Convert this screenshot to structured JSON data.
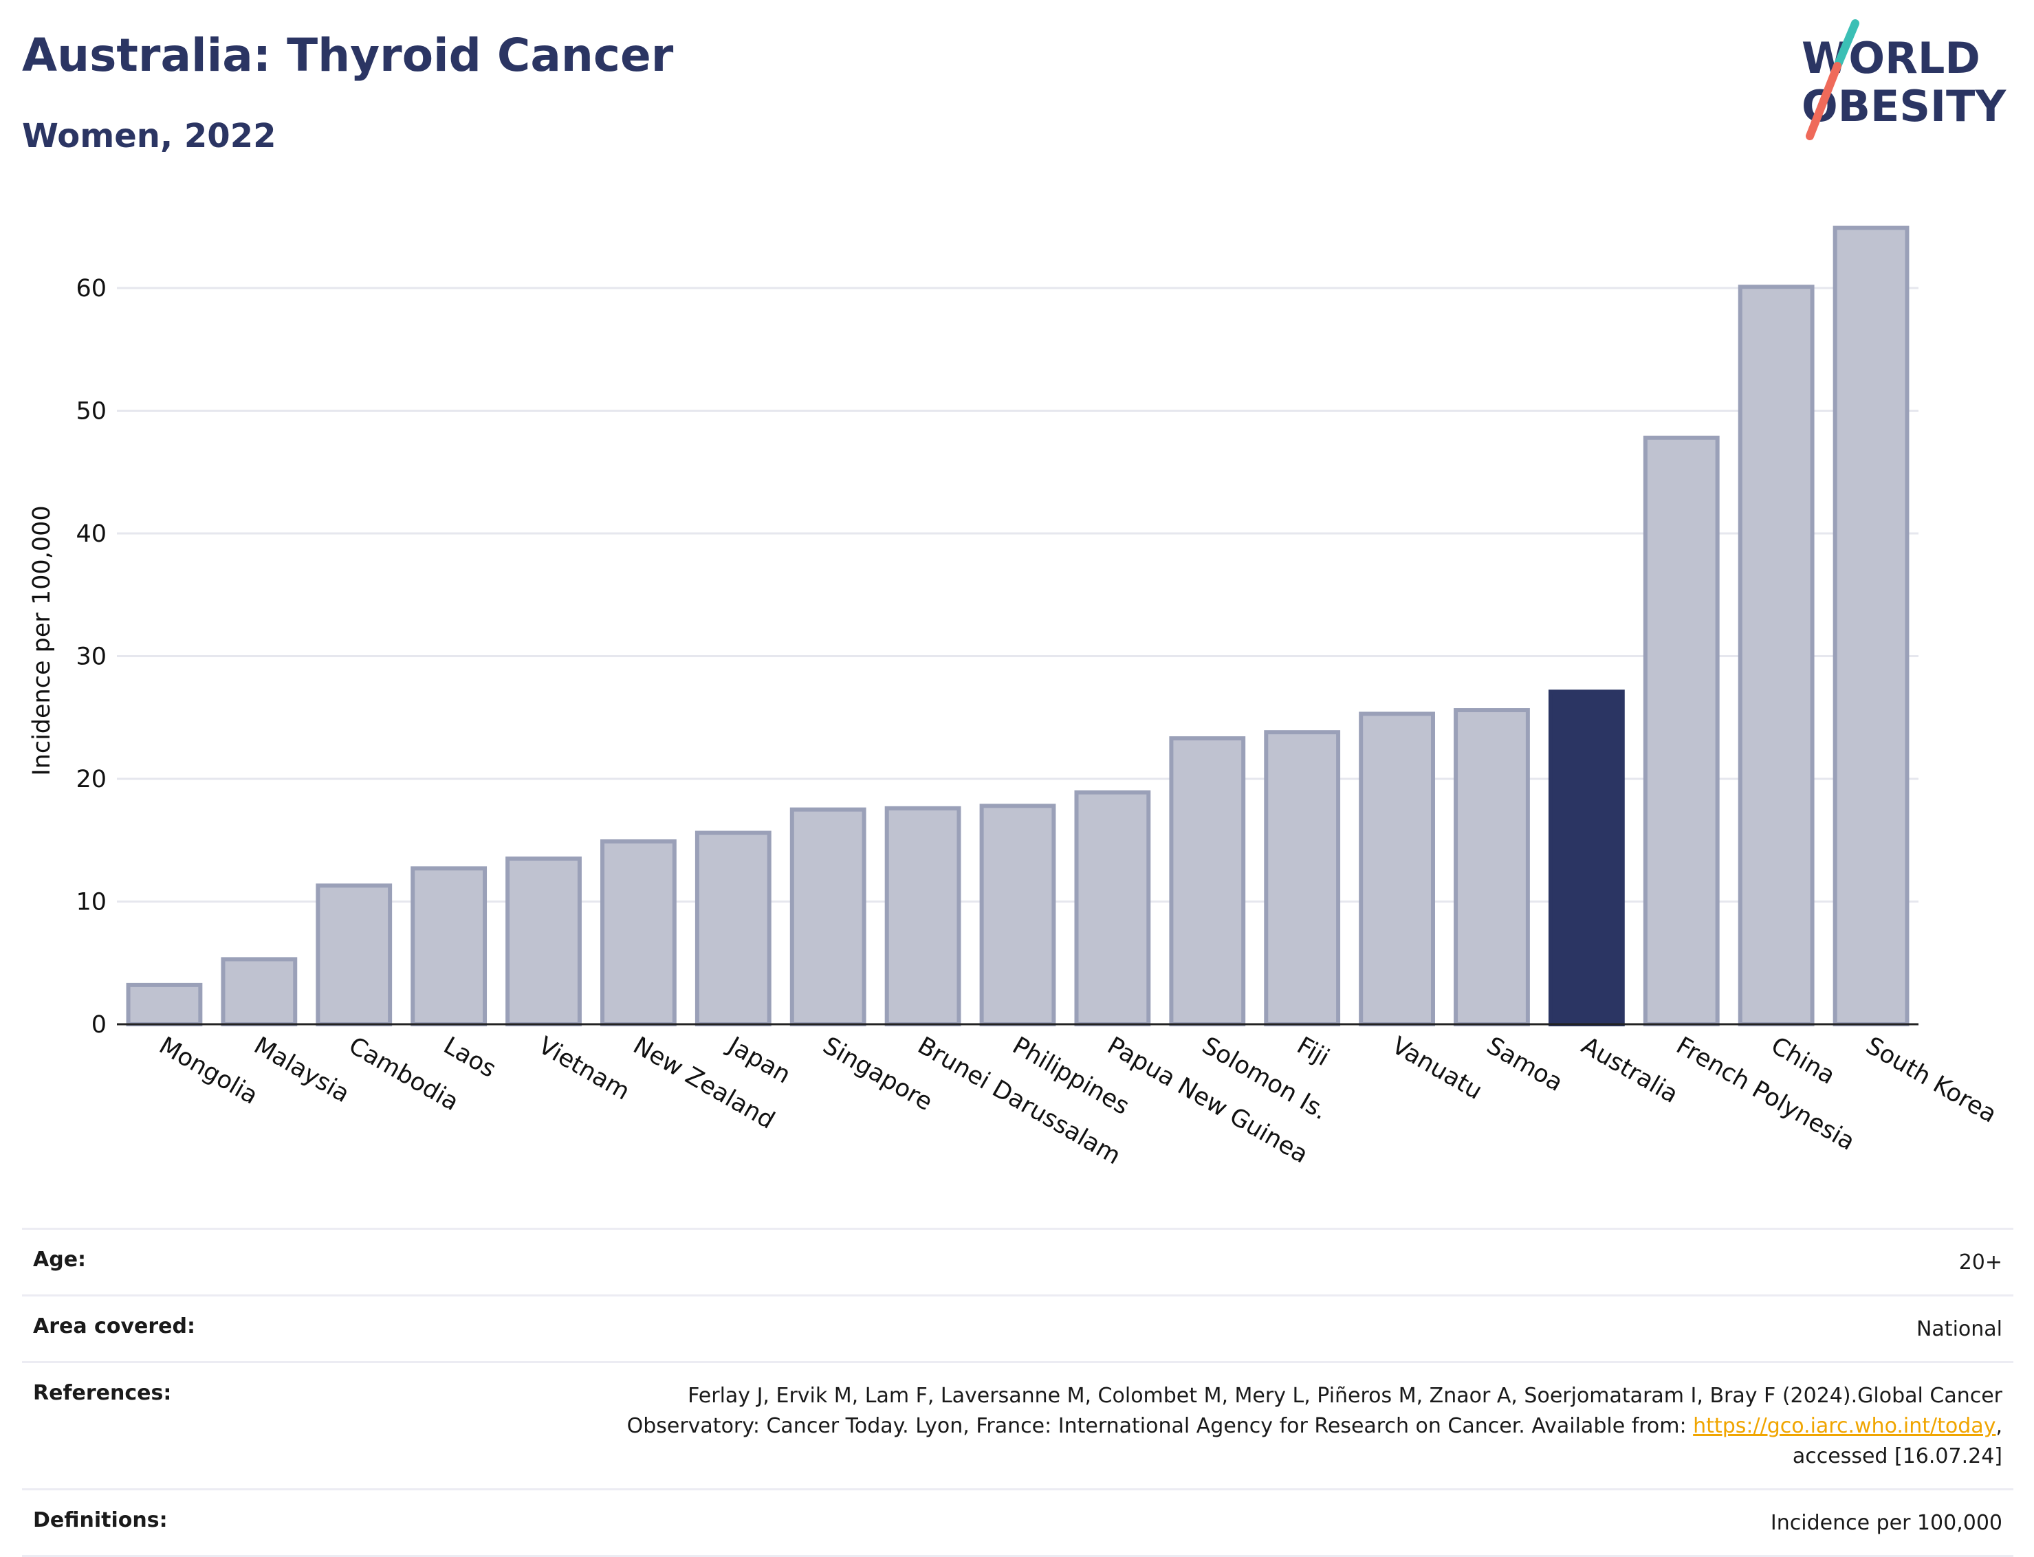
{
  "header": {
    "title": "Australia: Thyroid Cancer",
    "subtitle": "Women, 2022"
  },
  "logo": {
    "line1": "WORLD",
    "line2": "OBESITY",
    "text_color": "#2b3563",
    "accent_teal": "#3bbfb5",
    "accent_coral": "#ef6a5a"
  },
  "colors": {
    "bar_fill": "#bfc2d0",
    "bar_stroke": "#9aa0b8",
    "highlight_fill": "#2b3563",
    "grid": "#e6e7ee"
  },
  "chart_data": {
    "type": "bar",
    "title": "Australia: Thyroid Cancer",
    "subtitle": "Women, 2022",
    "xlabel": "",
    "ylabel": "Incidence per 100,000",
    "ylim": [
      0,
      67
    ],
    "yticks": [
      0,
      10,
      20,
      30,
      40,
      50,
      60
    ],
    "grid": true,
    "highlight": "Australia",
    "categories": [
      "Mongolia",
      "Malaysia",
      "Cambodia",
      "Laos",
      "Vietnam",
      "New Zealand",
      "Japan",
      "Singapore",
      "Brunei Darussalam",
      "Philippines",
      "Papua New Guinea",
      "Solomon Is.",
      "Fiji",
      "Vanuatu",
      "Samoa",
      "Australia",
      "French Polynesia",
      "China",
      "South Korea"
    ],
    "values": [
      3.2,
      5.3,
      11.3,
      12.7,
      13.5,
      14.9,
      15.6,
      17.5,
      17.6,
      17.8,
      18.9,
      23.3,
      23.8,
      25.3,
      25.6,
      27.1,
      47.8,
      60.1,
      64.9
    ]
  },
  "footer": {
    "age_label": "Age:",
    "age_value": "20+",
    "area_label": "Area covered:",
    "area_value": "National",
    "references_label": "References:",
    "references_text_1": "Ferlay J, Ervik M, Lam F, Laversanne M, Colombet M, Mery L, Piñeros M, Znaor A, Soerjomataram I, Bray F (2024).Global Cancer",
    "references_text_2": "Observatory: Cancer Today. Lyon, France: International Agency for Research on Cancer. Available from: ",
    "references_link": "https://gco.iarc.who.int/today",
    "references_text_3": ",",
    "references_text_4": "accessed [16.07.24]",
    "definitions_label": "Definitions:",
    "definitions_value": "Incidence per 100,000"
  }
}
